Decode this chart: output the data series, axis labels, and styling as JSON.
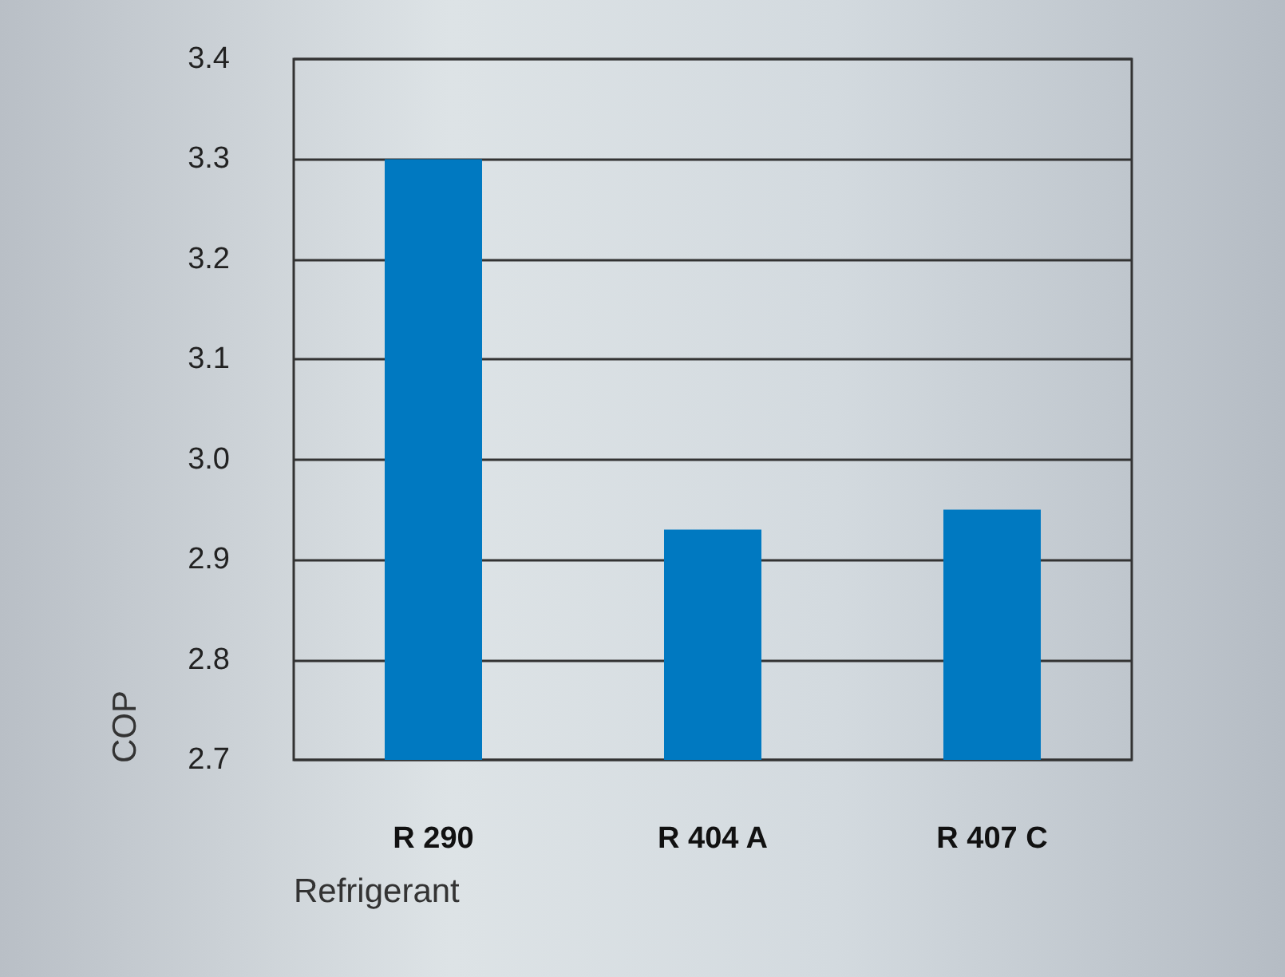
{
  "chart_data": {
    "type": "bar",
    "xlabel": "Refrigerant",
    "ylabel": "COP",
    "categories": [
      "R 290",
      "R 404 A",
      "R 407 C"
    ],
    "values": [
      3.3,
      2.93,
      2.95
    ],
    "color": "#0079c1",
    "ylim": [
      2.7,
      3.4
    ],
    "yticks": [
      2.7,
      2.8,
      2.9,
      {
        "value": 3,
        "label": "3.0"
      },
      3.1,
      3.2,
      3.3,
      3.4
    ],
    "grid": "y"
  }
}
